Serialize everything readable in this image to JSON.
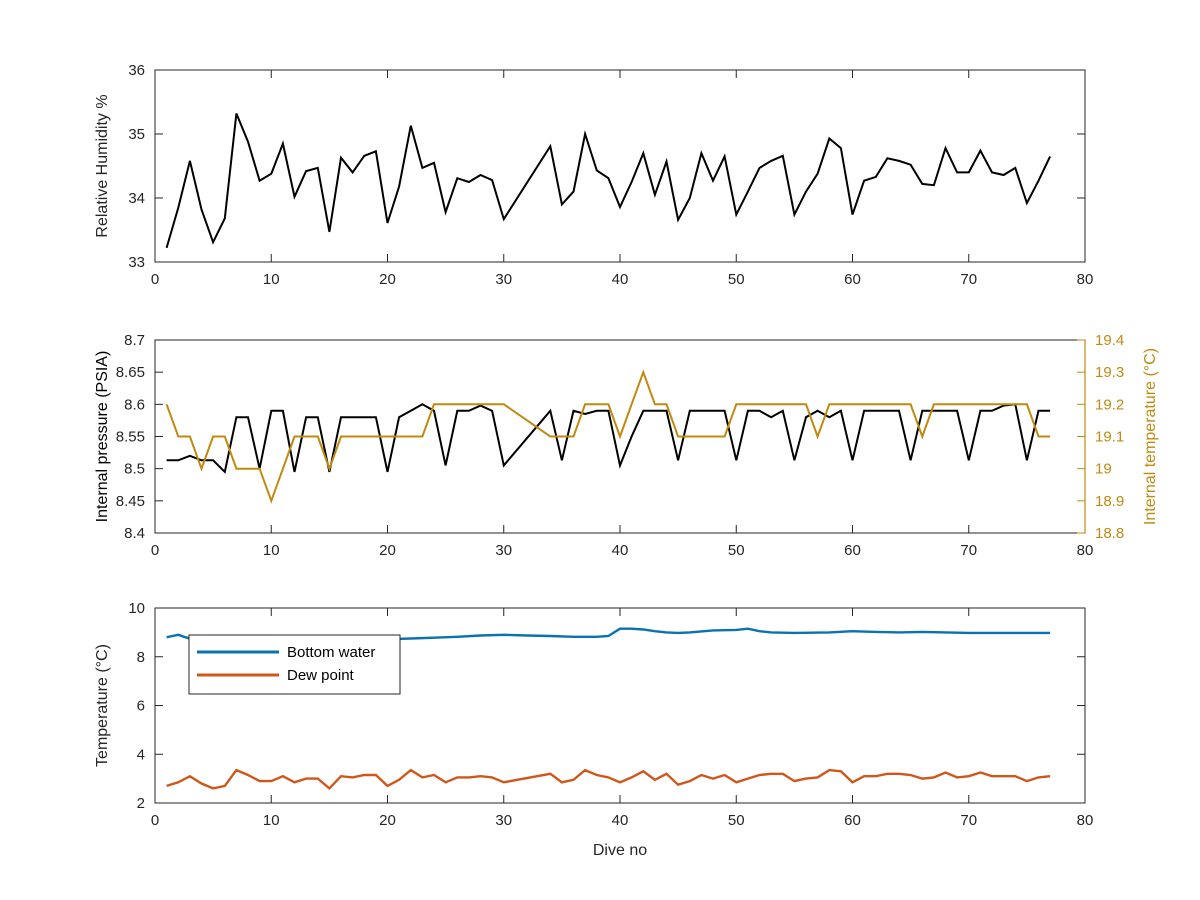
{
  "chart_data": [
    {
      "type": "line",
      "xlabel": "",
      "ylabel": "Relative Humidity %",
      "xlim": [
        0,
        80
      ],
      "ylim": [
        33,
        36
      ],
      "xticks": [
        0,
        10,
        20,
        30,
        40,
        50,
        60,
        70,
        80
      ],
      "yticks": [
        33,
        34,
        35,
        36
      ],
      "series": [
        {
          "color": "#000000",
          "x": [
            1,
            2,
            3,
            4,
            5,
            6,
            7,
            8,
            9,
            10,
            11,
            12,
            13,
            14,
            15,
            16,
            17,
            18,
            19,
            20,
            21,
            22,
            23,
            24,
            25,
            26,
            27,
            28,
            29,
            30,
            34,
            35,
            36,
            37,
            38,
            39,
            40,
            41,
            42,
            43,
            44,
            45,
            46,
            47,
            48,
            49,
            50,
            51,
            52,
            53,
            54,
            55,
            56,
            57,
            58,
            59,
            60,
            61,
            62,
            63,
            64,
            65,
            66,
            67,
            68,
            69,
            70,
            71,
            72,
            73,
            74,
            75,
            76,
            77
          ],
          "y": [
            33.22,
            33.85,
            34.58,
            33.82,
            33.31,
            33.68,
            35.32,
            34.88,
            34.27,
            34.38,
            34.85,
            34.02,
            34.42,
            34.47,
            33.47,
            34.63,
            34.4,
            34.66,
            34.73,
            33.61,
            34.18,
            35.13,
            34.47,
            34.55,
            33.78,
            34.31,
            34.25,
            34.36,
            34.28,
            33.67,
            34.81,
            33.9,
            34.1,
            35.0,
            34.43,
            34.31,
            33.86,
            34.25,
            34.7,
            34.05,
            34.57,
            33.66,
            34.0,
            34.7,
            34.27,
            34.65,
            33.74,
            34.1,
            34.47,
            34.58,
            34.66,
            33.74,
            34.1,
            34.38,
            34.93,
            34.78,
            33.74,
            34.27,
            34.33,
            34.62,
            34.58,
            34.52,
            34.22,
            34.2,
            34.78,
            34.4,
            34.4,
            34.74,
            34.4,
            34.36,
            34.47,
            33.92,
            34.27,
            34.65
          ]
        }
      ]
    },
    {
      "type": "line",
      "xlabel": "",
      "ylabel": "Internal pressure (PSIA)",
      "y2label": "Internal temperature (°C)",
      "xlim": [
        0,
        80
      ],
      "ylim": [
        8.4,
        8.7
      ],
      "y2lim": [
        18.8,
        19.4
      ],
      "xticks": [
        0,
        10,
        20,
        30,
        40,
        50,
        60,
        70,
        80
      ],
      "yticks": [
        8.4,
        8.45,
        8.5,
        8.55,
        8.6,
        8.65,
        8.7
      ],
      "y2ticks": [
        18.8,
        18.9,
        19,
        19.1,
        19.2,
        19.3,
        19.4
      ],
      "series": [
        {
          "axis": "left",
          "color": "#000000",
          "x": [
            1,
            2,
            3,
            4,
            5,
            6,
            7,
            8,
            9,
            10,
            11,
            12,
            13,
            14,
            15,
            16,
            17,
            18,
            19,
            20,
            21,
            22,
            23,
            24,
            25,
            26,
            27,
            28,
            29,
            30,
            34,
            35,
            36,
            37,
            38,
            39,
            40,
            41,
            42,
            43,
            44,
            45,
            46,
            47,
            48,
            49,
            50,
            51,
            52,
            53,
            54,
            55,
            56,
            57,
            58,
            59,
            60,
            61,
            62,
            63,
            64,
            65,
            66,
            67,
            68,
            69,
            70,
            71,
            72,
            73,
            74,
            75,
            76,
            77
          ],
          "y": [
            8.513,
            8.513,
            8.52,
            8.513,
            8.513,
            8.495,
            8.58,
            8.58,
            8.5,
            8.59,
            8.59,
            8.495,
            8.58,
            8.58,
            8.495,
            8.58,
            8.58,
            8.58,
            8.58,
            8.495,
            8.58,
            8.59,
            8.6,
            8.59,
            8.505,
            8.59,
            8.59,
            8.598,
            8.59,
            8.505,
            8.59,
            8.513,
            8.59,
            8.585,
            8.59,
            8.59,
            8.505,
            8.55,
            8.59,
            8.59,
            8.59,
            8.513,
            8.59,
            8.59,
            8.59,
            8.59,
            8.513,
            8.59,
            8.59,
            8.58,
            8.59,
            8.513,
            8.58,
            8.59,
            8.58,
            8.59,
            8.513,
            8.59,
            8.59,
            8.59,
            8.59,
            8.513,
            8.59,
            8.59,
            8.59,
            8.59,
            8.513,
            8.59,
            8.59,
            8.598,
            8.6,
            8.513,
            8.59,
            8.59
          ]
        },
        {
          "axis": "right",
          "color": "#c08a10",
          "x": [
            1,
            2,
            3,
            4,
            5,
            6,
            7,
            8,
            9,
            10,
            11,
            12,
            13,
            14,
            15,
            16,
            17,
            18,
            19,
            20,
            21,
            22,
            23,
            24,
            25,
            26,
            27,
            28,
            29,
            30,
            34,
            35,
            36,
            37,
            38,
            39,
            40,
            41,
            42,
            43,
            44,
            45,
            46,
            47,
            48,
            49,
            50,
            51,
            52,
            53,
            54,
            55,
            56,
            57,
            58,
            59,
            60,
            61,
            62,
            63,
            64,
            65,
            66,
            67,
            68,
            69,
            70,
            71,
            72,
            73,
            74,
            75,
            76,
            77
          ],
          "y": [
            19.2,
            19.1,
            19.1,
            19.0,
            19.1,
            19.1,
            19.0,
            19.0,
            19.0,
            18.9,
            19.0,
            19.1,
            19.1,
            19.1,
            19.0,
            19.1,
            19.1,
            19.1,
            19.1,
            19.1,
            19.1,
            19.1,
            19.1,
            19.2,
            19.2,
            19.2,
            19.2,
            19.2,
            19.2,
            19.2,
            19.1,
            19.1,
            19.1,
            19.2,
            19.2,
            19.2,
            19.1,
            19.2,
            19.3,
            19.2,
            19.2,
            19.1,
            19.1,
            19.1,
            19.1,
            19.1,
            19.2,
            19.2,
            19.2,
            19.2,
            19.2,
            19.2,
            19.2,
            19.1,
            19.2,
            19.2,
            19.2,
            19.2,
            19.2,
            19.2,
            19.2,
            19.2,
            19.1,
            19.2,
            19.2,
            19.2,
            19.2,
            19.2,
            19.2,
            19.2,
            19.2,
            19.2,
            19.1,
            19.1
          ]
        }
      ]
    },
    {
      "type": "line",
      "xlabel": "Dive no",
      "ylabel": "Temperature (°C)",
      "xlim": [
        0,
        80
      ],
      "ylim": [
        2,
        10
      ],
      "xticks": [
        0,
        10,
        20,
        30,
        40,
        50,
        60,
        70,
        80
      ],
      "yticks": [
        2,
        4,
        6,
        8,
        10
      ],
      "legend": "top-left",
      "series": [
        {
          "name": "Bottom water",
          "color": "#0a72b0",
          "x": [
            1,
            1.5,
            2,
            2.5,
            3,
            5,
            10,
            15,
            20,
            22,
            24,
            26,
            28,
            30,
            32,
            34,
            36,
            38,
            39,
            40,
            41,
            42,
            43,
            44,
            45,
            46,
            48,
            50,
            51,
            52,
            53,
            55,
            58,
            60,
            62,
            64,
            66,
            68,
            70,
            72,
            74,
            77
          ],
          "y": [
            8.8,
            8.85,
            8.9,
            8.82,
            8.75,
            8.72,
            8.72,
            8.72,
            8.72,
            8.75,
            8.78,
            8.82,
            8.87,
            8.9,
            8.87,
            8.85,
            8.82,
            8.82,
            8.85,
            9.15,
            9.15,
            9.12,
            9.05,
            9.0,
            8.98,
            9.0,
            9.08,
            9.1,
            9.15,
            9.05,
            9.0,
            8.98,
            9.0,
            9.05,
            9.02,
            9.0,
            9.02,
            9.0,
            8.98,
            8.98,
            8.98,
            8.98
          ]
        },
        {
          "name": "Dew point",
          "color": "#d0571c",
          "x": [
            1,
            2,
            3,
            4,
            5,
            6,
            7,
            8,
            9,
            10,
            11,
            12,
            13,
            14,
            15,
            16,
            17,
            18,
            19,
            20,
            21,
            22,
            23,
            24,
            25,
            26,
            27,
            28,
            29,
            30,
            34,
            35,
            36,
            37,
            38,
            39,
            40,
            41,
            42,
            43,
            44,
            45,
            46,
            47,
            48,
            49,
            50,
            51,
            52,
            53,
            54,
            55,
            56,
            57,
            58,
            59,
            60,
            61,
            62,
            63,
            64,
            65,
            66,
            67,
            68,
            69,
            70,
            71,
            72,
            73,
            74,
            75,
            76,
            77
          ],
          "y": [
            2.7,
            2.85,
            3.1,
            2.8,
            2.6,
            2.7,
            3.35,
            3.15,
            2.9,
            2.9,
            3.1,
            2.85,
            3.0,
            3.0,
            2.6,
            3.1,
            3.05,
            3.15,
            3.15,
            2.7,
            2.95,
            3.35,
            3.05,
            3.15,
            2.85,
            3.05,
            3.05,
            3.1,
            3.05,
            2.85,
            3.2,
            2.85,
            2.95,
            3.35,
            3.15,
            3.05,
            2.85,
            3.05,
            3.3,
            2.95,
            3.2,
            2.75,
            2.9,
            3.15,
            3.0,
            3.15,
            2.85,
            3.0,
            3.15,
            3.2,
            3.2,
            2.9,
            3.0,
            3.05,
            3.35,
            3.3,
            2.85,
            3.1,
            3.1,
            3.2,
            3.2,
            3.15,
            3.0,
            3.05,
            3.25,
            3.05,
            3.1,
            3.25,
            3.1,
            3.1,
            3.1,
            2.9,
            3.05,
            3.1
          ]
        }
      ]
    }
  ]
}
